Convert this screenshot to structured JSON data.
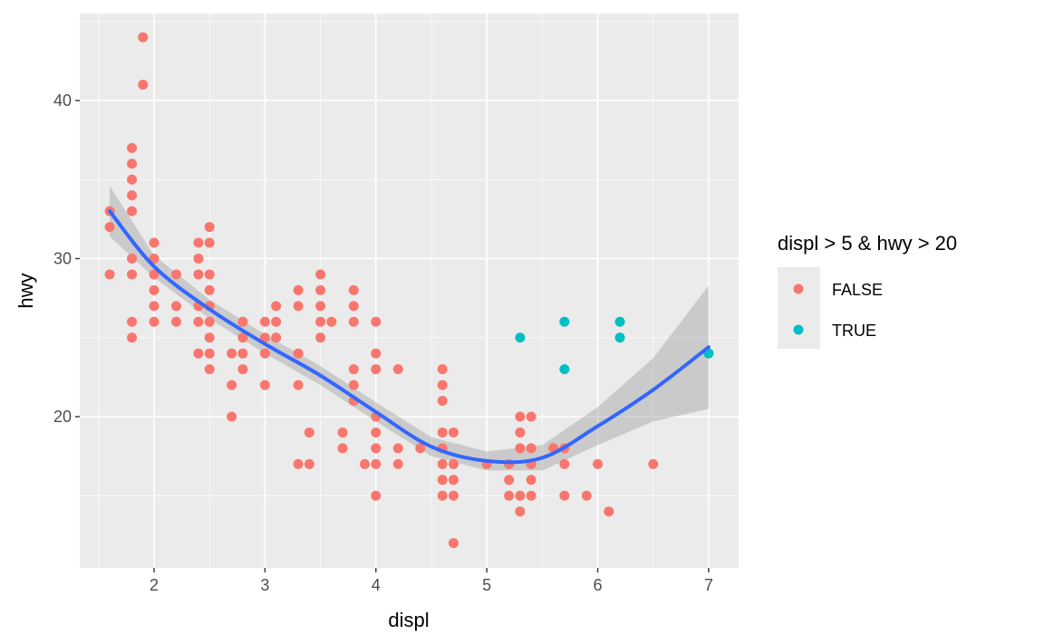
{
  "chart_data": {
    "type": "scatter",
    "x_label": "displ",
    "y_label": "hwy",
    "legend_title": "displ > 5 & hwy > 20",
    "legend_position": "right",
    "grid": true,
    "xlim": [
      1.33,
      7.27
    ],
    "ylim": [
      10.43,
      45.5
    ],
    "xticks": [
      2,
      3,
      4,
      5,
      6,
      7
    ],
    "yticks": [
      20,
      30,
      40
    ],
    "xminor": [
      1.5,
      2.5,
      3.5,
      4.5,
      5.5,
      6.5
    ],
    "yminor": [
      15,
      25,
      35,
      45
    ],
    "series": [
      {
        "name": "FALSE",
        "color": "#f8766d",
        "x": [
          1.6,
          1.6,
          1.6,
          1.8,
          1.8,
          1.8,
          1.8,
          1.8,
          1.8,
          1.8,
          1.8,
          1.8,
          1.9,
          1.9,
          2,
          2,
          2,
          2,
          2,
          2,
          2.2,
          2.2,
          2.2,
          2.4,
          2.4,
          2.4,
          2.4,
          2.4,
          2.4,
          2.5,
          2.5,
          2.5,
          2.5,
          2.5,
          2.5,
          2.5,
          2.5,
          2.5,
          2.7,
          2.7,
          2.7,
          2.8,
          2.8,
          2.8,
          2.8,
          3,
          3,
          3,
          3,
          3.1,
          3.1,
          3.1,
          3.3,
          3.3,
          3.3,
          3.3,
          3.3,
          3.4,
          3.4,
          3.5,
          3.5,
          3.5,
          3.5,
          3.5,
          3.6,
          3.7,
          3.7,
          3.8,
          3.8,
          3.8,
          3.8,
          3.8,
          3.8,
          3.9,
          4,
          4,
          4,
          4,
          4,
          4,
          4,
          4,
          4.2,
          4.2,
          4.2,
          4.4,
          4.6,
          4.6,
          4.6,
          4.6,
          4.6,
          4.6,
          4.6,
          4.6,
          4.7,
          4.7,
          4.7,
          4.7,
          4.7,
          5,
          5.2,
          5.2,
          5.2,
          5.3,
          5.3,
          5.3,
          5.3,
          5.3,
          5.4,
          5.4,
          5.4,
          5.4,
          5.4,
          5.6,
          5.7,
          5.7,
          5.7,
          5.9,
          6,
          6.1,
          6.5
        ],
        "values": [
          33,
          32,
          29,
          37,
          36,
          35,
          34,
          33,
          30,
          29,
          26,
          25,
          44,
          41,
          31,
          30,
          29,
          28,
          27,
          26,
          29,
          27,
          26,
          31,
          30,
          29,
          27,
          26,
          24,
          32,
          31,
          29,
          28,
          27,
          26,
          25,
          24,
          23,
          24,
          22,
          20,
          26,
          25,
          24,
          23,
          26,
          25,
          24,
          22,
          27,
          26,
          25,
          28,
          27,
          24,
          22,
          17,
          19,
          17,
          29,
          28,
          27,
          26,
          25,
          26,
          19,
          18,
          28,
          27,
          26,
          23,
          22,
          21,
          17,
          26,
          24,
          23,
          20,
          19,
          18,
          17,
          15,
          23,
          18,
          17,
          18,
          23,
          22,
          21,
          19,
          18,
          17,
          16,
          15,
          19,
          17,
          16,
          15,
          12,
          17,
          17,
          16,
          15,
          20,
          19,
          18,
          15,
          14,
          20,
          18,
          17,
          16,
          15,
          18,
          18,
          17,
          15,
          15,
          17,
          14,
          17
        ]
      },
      {
        "name": "TRUE",
        "color": "#00bfc4",
        "x": [
          5.3,
          5.7,
          5.7,
          6.2,
          6.2,
          7
        ],
        "values": [
          25,
          26,
          23,
          26,
          25,
          24
        ]
      }
    ],
    "smooth": {
      "color": "#3366ff",
      "band_color": "#999999",
      "x": [
        1.6,
        2,
        2.5,
        3,
        3.5,
        4,
        4.5,
        5,
        5.5,
        6,
        6.5,
        7
      ],
      "y": [
        33,
        29.5,
        26.8,
        24.6,
        22.6,
        20.3,
        18.1,
        17.2,
        17.4,
        19.4,
        21.7,
        24.4
      ],
      "ymin": [
        31.4,
        28.8,
        26.2,
        24.0,
        22.0,
        19.7,
        17.5,
        16.6,
        16.6,
        18.2,
        19.7,
        20.5
      ],
      "ymax": [
        34.6,
        30.2,
        27.4,
        25.2,
        23.2,
        20.9,
        18.7,
        17.8,
        18.2,
        20.6,
        23.7,
        28.3
      ]
    }
  }
}
